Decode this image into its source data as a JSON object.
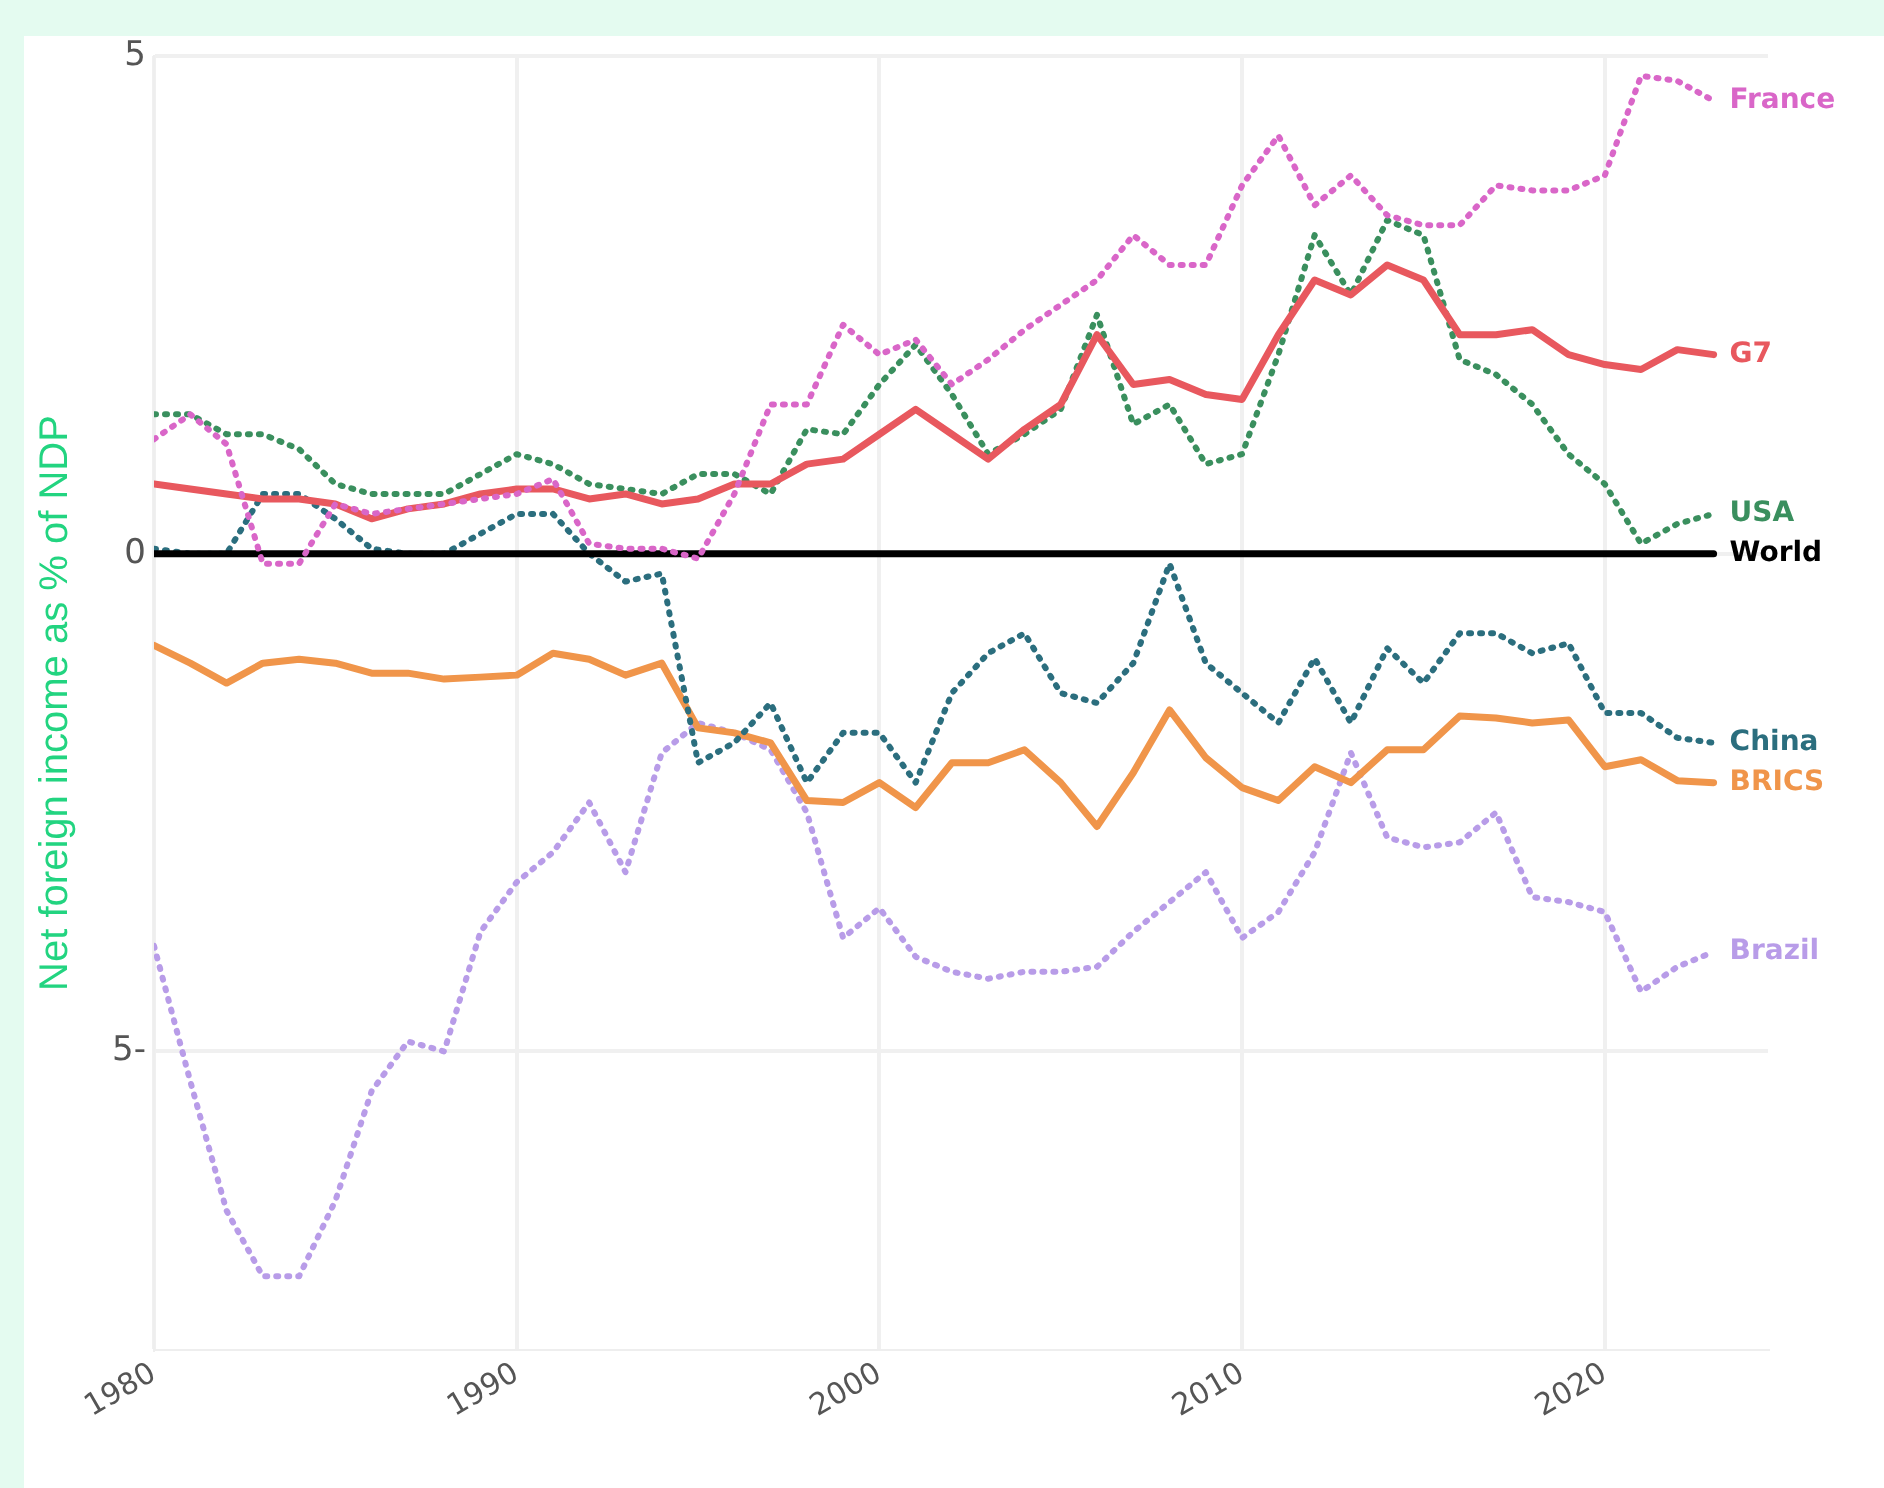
{
  "chart_data": {
    "type": "line",
    "ylabel": "Net foreign income as % of NDP",
    "x": [
      1980,
      1981,
      1982,
      1983,
      1984,
      1985,
      1986,
      1987,
      1988,
      1989,
      1990,
      1991,
      1992,
      1993,
      1994,
      1995,
      1996,
      1997,
      1998,
      1999,
      2000,
      2001,
      2002,
      2003,
      2004,
      2005,
      2006,
      2007,
      2008,
      2009,
      2010,
      2011,
      2012,
      2013,
      2014,
      2015,
      2016,
      2017,
      2018,
      2019,
      2020,
      2021,
      2022,
      2023
    ],
    "series": [
      {
        "name": "France",
        "color": "#d966c8",
        "line_style": "dotted",
        "values": [
          1.15,
          1.4,
          1.1,
          -0.1,
          -0.1,
          0.5,
          0.4,
          0.45,
          0.5,
          0.55,
          0.6,
          0.75,
          0.1,
          0.05,
          0.05,
          -0.05,
          0.6,
          1.5,
          1.5,
          2.3,
          2.0,
          2.15,
          1.7,
          1.95,
          2.25,
          2.5,
          2.75,
          3.2,
          2.9,
          2.9,
          3.7,
          4.2,
          3.5,
          3.8,
          3.4,
          3.3,
          3.3,
          3.7,
          3.65,
          3.65,
          3.8,
          4.8,
          4.75,
          4.55
        ]
      },
      {
        "name": "G7",
        "color": "#e8585e",
        "line_style": "solid",
        "values": [
          0.7,
          0.65,
          0.6,
          0.55,
          0.55,
          0.5,
          0.35,
          0.45,
          0.5,
          0.6,
          0.65,
          0.65,
          0.55,
          0.6,
          0.5,
          0.55,
          0.7,
          0.7,
          0.9,
          0.95,
          1.2,
          1.45,
          1.2,
          0.95,
          1.25,
          1.5,
          2.2,
          1.7,
          1.75,
          1.6,
          1.55,
          2.2,
          2.75,
          2.6,
          2.9,
          2.75,
          2.2,
          2.2,
          2.25,
          2.0,
          1.9,
          1.85,
          2.05,
          2.0
        ]
      },
      {
        "name": "USA",
        "color": "#3a8f5e",
        "line_style": "dotted",
        "values": [
          1.4,
          1.4,
          1.2,
          1.2,
          1.05,
          0.7,
          0.6,
          0.6,
          0.6,
          0.8,
          1.0,
          0.9,
          0.7,
          0.65,
          0.6,
          0.8,
          0.8,
          0.6,
          1.25,
          1.2,
          1.7,
          2.1,
          1.6,
          1.0,
          1.2,
          1.45,
          2.4,
          1.3,
          1.5,
          0.9,
          1.0,
          2.0,
          3.2,
          2.6,
          3.35,
          3.2,
          1.95,
          1.8,
          1.5,
          1.0,
          0.7,
          0.1,
          0.3,
          0.4
        ]
      },
      {
        "name": "World",
        "color": "#000000",
        "line_style": "solid",
        "values": [
          0,
          0,
          0,
          0,
          0,
          0,
          0,
          0,
          0,
          0,
          0,
          0,
          0,
          0,
          0,
          0,
          0,
          0,
          0,
          0,
          0,
          0,
          0,
          0,
          0,
          0,
          0,
          0,
          0,
          0,
          0,
          0,
          0,
          0,
          0,
          0,
          0,
          0,
          0,
          0,
          0,
          0,
          0,
          0
        ]
      },
      {
        "name": "China",
        "color": "#2b6e7e",
        "line_style": "dotted",
        "values": [
          0.05,
          0,
          0,
          0.6,
          0.6,
          0.35,
          0.05,
          0,
          0,
          0.2,
          0.4,
          0.4,
          0,
          -0.28,
          -0.2,
          -2.1,
          -1.9,
          -1.5,
          -2.3,
          -1.8,
          -1.8,
          -2.3,
          -1.4,
          -1.0,
          -0.8,
          -1.4,
          -1.5,
          -1.1,
          -0.1,
          -1.1,
          -1.4,
          -1.7,
          -1.05,
          -1.7,
          -0.95,
          -1.3,
          -0.8,
          -0.8,
          -1.0,
          -0.9,
          -1.6,
          -1.6,
          -1.85,
          -1.9
        ]
      },
      {
        "name": "BRICS",
        "color": "#f0954a",
        "line_style": "solid",
        "values": [
          -0.92,
          -1.1,
          -1.3,
          -1.1,
          -1.06,
          -1.1,
          -1.2,
          -1.2,
          -1.26,
          -1.24,
          -1.22,
          -1.0,
          -1.06,
          -1.22,
          -1.1,
          -1.75,
          -1.8,
          -1.9,
          -2.48,
          -2.5,
          -2.3,
          -2.55,
          -2.1,
          -2.1,
          -1.97,
          -2.3,
          -2.74,
          -2.2,
          -1.57,
          -2.05,
          -2.35,
          -2.48,
          -2.14,
          -2.3,
          -1.97,
          -1.97,
          -1.63,
          -1.65,
          -1.7,
          -1.67,
          -2.14,
          -2.07,
          -2.28,
          -2.3
        ]
      },
      {
        "name": "Brazil",
        "color": "#b89ce8",
        "line_style": "dotted",
        "values": [
          -3.94,
          -5.3,
          -6.6,
          -7.26,
          -7.26,
          -6.5,
          -5.4,
          -4.9,
          -5.0,
          -3.8,
          -3.3,
          -3.0,
          -2.5,
          -3.2,
          -2.0,
          -1.7,
          -1.8,
          -1.97,
          -2.6,
          -3.86,
          -3.56,
          -4.05,
          -4.2,
          -4.27,
          -4.2,
          -4.2,
          -4.15,
          -3.8,
          -3.5,
          -3.2,
          -3.86,
          -3.6,
          -3.0,
          -2.0,
          -2.85,
          -2.95,
          -2.9,
          -2.6,
          -3.45,
          -3.5,
          -3.6,
          -4.4,
          -4.15,
          -4.0
        ]
      }
    ],
    "xlim": [
      1980,
      2024.5
    ],
    "xticks": [
      1980,
      1990,
      2000,
      2010,
      2020
    ],
    "ylim": [
      -8,
      5
    ],
    "yticks": [
      {
        "value": -5,
        "label": "5-"
      },
      0,
      5
    ],
    "grid": true,
    "legend": false
  }
}
